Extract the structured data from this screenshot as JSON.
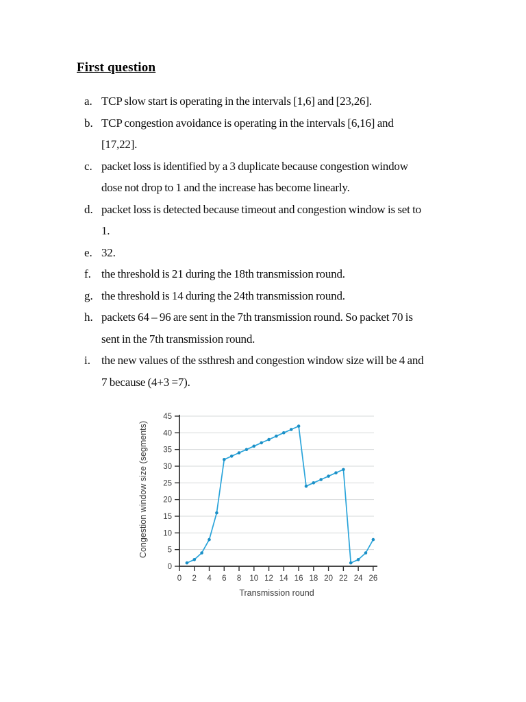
{
  "page": {
    "title": "First question",
    "background": "#ffffff"
  },
  "answers": [
    {
      "marker": "a.",
      "lines": [
        "TCP slow start is operating in the intervals [1,6] and [23,26]."
      ]
    },
    {
      "marker": "b.",
      "lines": [
        "TCP congestion avoidance is operating in the intervals [6,16] and",
        "[17,22]."
      ]
    },
    {
      "marker": "c.",
      "lines": [
        "packet loss is identified by a 3 duplicate because congestion window",
        "dose not drop to 1 and the increase has become linearly."
      ]
    },
    {
      "marker": "d.",
      "lines": [
        "packet loss is detected because timeout and congestion window is set to",
        "1."
      ]
    },
    {
      "marker": "e.",
      "lines": [
        "32."
      ]
    },
    {
      "marker": "f.",
      "lines": [
        "the threshold is 21 during the 18th transmission round."
      ]
    },
    {
      "marker": "g.",
      "lines": [
        "the threshold is 14 during the 24th transmission round."
      ]
    },
    {
      "marker": "h.",
      "lines": [
        "packets 64 – 96 are sent in the 7th transmission round. So packet 70 is",
        "sent in the 7th transmission round."
      ]
    },
    {
      "marker": "i.",
      "lines": [
        "the new values of the ssthresh and congestion window size will be 4 and",
        "7 because (4+3 =7)."
      ]
    }
  ],
  "chart_data": {
    "type": "line",
    "x": [
      1,
      2,
      3,
      4,
      5,
      6,
      7,
      8,
      9,
      10,
      11,
      12,
      13,
      14,
      15,
      16,
      17,
      18,
      19,
      20,
      21,
      22,
      23,
      24,
      25,
      26
    ],
    "values": [
      1,
      2,
      4,
      8,
      16,
      32,
      33,
      34,
      35,
      36,
      37,
      38,
      39,
      40,
      41,
      42,
      24,
      25,
      26,
      27,
      28,
      29,
      1,
      2,
      4,
      8
    ],
    "title": "",
    "xlabel": "Transmission round",
    "ylabel": "Congestion window size (segments)",
    "xlim": [
      0,
      26
    ],
    "ylim": [
      0,
      45
    ],
    "xticks": [
      0,
      2,
      4,
      6,
      8,
      10,
      12,
      14,
      16,
      18,
      20,
      22,
      24,
      26
    ],
    "yticks": [
      0,
      5,
      10,
      15,
      20,
      25,
      30,
      35,
      40,
      45
    ],
    "grid": "horizontal",
    "legend": "none",
    "line_color": "#2aa4da",
    "marker_color": "#1b8fc6",
    "grid_color": "#d5d8da",
    "axis_color": "#2d2d2d",
    "tick_label_color": "#3a3a3a"
  }
}
